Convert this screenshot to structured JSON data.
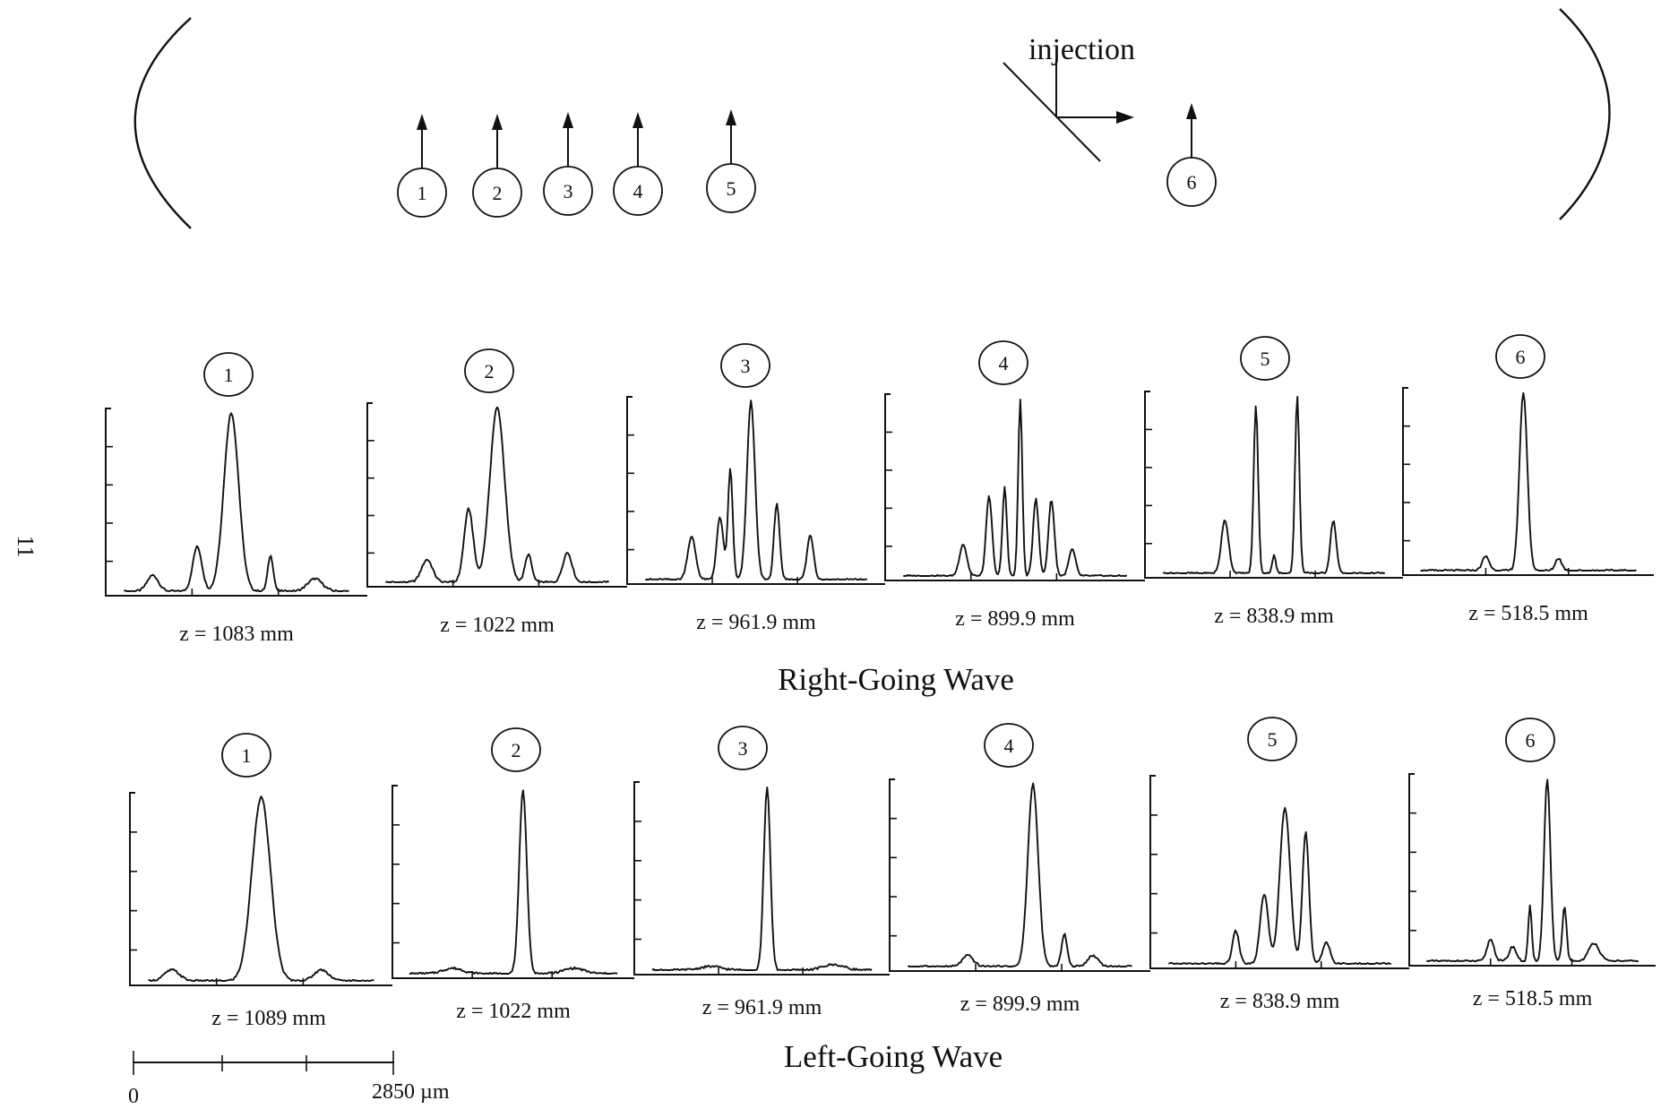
{
  "page_number": "11",
  "cavity": {
    "injection_label": "injection",
    "probe_markers": [
      "1",
      "2",
      "3",
      "4",
      "5",
      "6"
    ]
  },
  "right_going": {
    "title": "Right-Going Wave",
    "panels": [
      {
        "marker": "1",
        "label": "z = 1083 mm"
      },
      {
        "marker": "2",
        "label": "z = 1022 mm"
      },
      {
        "marker": "3",
        "label": "z = 961.9 mm"
      },
      {
        "marker": "4",
        "label": "z = 899.9 mm"
      },
      {
        "marker": "5",
        "label": "z = 838.9 mm"
      },
      {
        "marker": "6",
        "label": "z = 518.5 mm"
      }
    ]
  },
  "left_going": {
    "title": "Left-Going Wave",
    "panels": [
      {
        "marker": "1",
        "label": "z = 1089 mm"
      },
      {
        "marker": "2",
        "label": "z = 1022 mm"
      },
      {
        "marker": "3",
        "label": "z = 961.9 mm"
      },
      {
        "marker": "4",
        "label": "z = 899.9 mm"
      },
      {
        "marker": "5",
        "label": "z = 838.9 mm"
      },
      {
        "marker": "6",
        "label": "z = 518.5 mm"
      }
    ]
  },
  "scale_bar": {
    "start_label": "0",
    "end_label": "2850 µm",
    "value_um": 2850
  },
  "chart_data": [
    {
      "type": "line",
      "name": "Right-Going Wave, z = 1083 mm",
      "x_range": [
        0,
        1
      ],
      "y_range": [
        0,
        1
      ],
      "peaks": [
        {
          "x": 0.18,
          "y": 0.09,
          "w": 0.03
        },
        {
          "x": 0.35,
          "y": 0.25,
          "w": 0.025
        },
        {
          "x": 0.48,
          "y": 1.0,
          "w": 0.04
        },
        {
          "x": 0.63,
          "y": 0.2,
          "w": 0.015
        },
        {
          "x": 0.8,
          "y": 0.07,
          "w": 0.04
        }
      ]
    },
    {
      "type": "line",
      "name": "Right-Going Wave, z = 1022 mm",
      "x_range": [
        0,
        1
      ],
      "y_range": [
        0,
        1
      ],
      "peaks": [
        {
          "x": 0.23,
          "y": 0.13,
          "w": 0.03
        },
        {
          "x": 0.39,
          "y": 0.42,
          "w": 0.025
        },
        {
          "x": 0.5,
          "y": 1.0,
          "w": 0.04
        },
        {
          "x": 0.62,
          "y": 0.16,
          "w": 0.018
        },
        {
          "x": 0.77,
          "y": 0.17,
          "w": 0.025
        }
      ]
    },
    {
      "type": "line",
      "name": "Right-Going Wave, z = 961.9 mm",
      "x_range": [
        0,
        1
      ],
      "y_range": [
        0,
        1
      ],
      "peaks": [
        {
          "x": 0.25,
          "y": 0.24,
          "w": 0.022
        },
        {
          "x": 0.36,
          "y": 0.35,
          "w": 0.018
        },
        {
          "x": 0.4,
          "y": 0.62,
          "w": 0.013
        },
        {
          "x": 0.48,
          "y": 1.0,
          "w": 0.022
        },
        {
          "x": 0.58,
          "y": 0.43,
          "w": 0.015
        },
        {
          "x": 0.71,
          "y": 0.25,
          "w": 0.018
        }
      ]
    },
    {
      "type": "line",
      "name": "Right-Going Wave, z = 899.9 mm",
      "x_range": [
        0,
        1
      ],
      "y_range": [
        0,
        1
      ],
      "peaks": [
        {
          "x": 0.3,
          "y": 0.18,
          "w": 0.02
        },
        {
          "x": 0.4,
          "y": 0.45,
          "w": 0.016
        },
        {
          "x": 0.46,
          "y": 0.5,
          "w": 0.012
        },
        {
          "x": 0.52,
          "y": 1.0,
          "w": 0.011
        },
        {
          "x": 0.58,
          "y": 0.44,
          "w": 0.015
        },
        {
          "x": 0.64,
          "y": 0.43,
          "w": 0.016
        },
        {
          "x": 0.72,
          "y": 0.15,
          "w": 0.018
        }
      ]
    },
    {
      "type": "line",
      "name": "Right-Going Wave, z = 838.9 mm",
      "x_range": [
        0,
        1
      ],
      "y_range": [
        0,
        1
      ],
      "peaks": [
        {
          "x": 0.31,
          "y": 0.3,
          "w": 0.02
        },
        {
          "x": 0.43,
          "y": 0.95,
          "w": 0.012
        },
        {
          "x": 0.5,
          "y": 0.1,
          "w": 0.01
        },
        {
          "x": 0.59,
          "y": 1.0,
          "w": 0.012
        },
        {
          "x": 0.73,
          "y": 0.3,
          "w": 0.016
        }
      ]
    },
    {
      "type": "line",
      "name": "Right-Going Wave, z = 518.5 mm",
      "x_range": [
        0,
        1
      ],
      "y_range": [
        0,
        1
      ],
      "peaks": [
        {
          "x": 0.33,
          "y": 0.08,
          "w": 0.02
        },
        {
          "x": 0.48,
          "y": 1.0,
          "w": 0.022
        },
        {
          "x": 0.62,
          "y": 0.07,
          "w": 0.018
        }
      ]
    },
    {
      "type": "line",
      "name": "Left-Going Wave, z = 1089 mm",
      "x_range": [
        0,
        1
      ],
      "y_range": [
        0,
        1
      ],
      "peaks": [
        {
          "x": 0.16,
          "y": 0.06,
          "w": 0.04
        },
        {
          "x": 0.5,
          "y": 1.0,
          "w": 0.05
        },
        {
          "x": 0.73,
          "y": 0.06,
          "w": 0.04
        }
      ]
    },
    {
      "type": "line",
      "name": "Left-Going Wave, z = 1022 mm",
      "x_range": [
        0,
        1
      ],
      "y_range": [
        0,
        1
      ],
      "peaks": [
        {
          "x": 0.25,
          "y": 0.03,
          "w": 0.06
        },
        {
          "x": 0.54,
          "y": 1.0,
          "w": 0.022
        },
        {
          "x": 0.75,
          "y": 0.03,
          "w": 0.06
        }
      ]
    },
    {
      "type": "line",
      "name": "Left-Going Wave, z = 961.9 mm",
      "x_range": [
        0,
        1
      ],
      "y_range": [
        0,
        1
      ],
      "peaks": [
        {
          "x": 0.3,
          "y": 0.02,
          "w": 0.06
        },
        {
          "x": 0.52,
          "y": 1.0,
          "w": 0.018
        },
        {
          "x": 0.78,
          "y": 0.03,
          "w": 0.06
        }
      ]
    },
    {
      "type": "line",
      "name": "Left-Going Wave, z = 899.9 mm",
      "x_range": [
        0,
        1
      ],
      "y_range": [
        0,
        1
      ],
      "peaks": [
        {
          "x": 0.3,
          "y": 0.06,
          "w": 0.03
        },
        {
          "x": 0.55,
          "y": 1.0,
          "w": 0.028
        },
        {
          "x": 0.67,
          "y": 0.18,
          "w": 0.015
        },
        {
          "x": 0.78,
          "y": 0.06,
          "w": 0.03
        }
      ]
    },
    {
      "type": "line",
      "name": "Left-Going Wave, z = 838.9 mm",
      "x_range": [
        0,
        1
      ],
      "y_range": [
        0,
        1
      ],
      "peaks": [
        {
          "x": 0.33,
          "y": 0.18,
          "w": 0.018
        },
        {
          "x": 0.44,
          "y": 0.38,
          "w": 0.022
        },
        {
          "x": 0.52,
          "y": 0.85,
          "w": 0.028
        },
        {
          "x": 0.6,
          "y": 0.72,
          "w": 0.018
        },
        {
          "x": 0.68,
          "y": 0.12,
          "w": 0.02
        }
      ]
    },
    {
      "type": "line",
      "name": "Left-Going Wave, z = 518.5 mm",
      "x_range": [
        0,
        1
      ],
      "y_range": [
        0,
        1
      ],
      "peaks": [
        {
          "x": 0.33,
          "y": 0.12,
          "w": 0.02
        },
        {
          "x": 0.42,
          "y": 0.08,
          "w": 0.02
        },
        {
          "x": 0.49,
          "y": 0.3,
          "w": 0.01
        },
        {
          "x": 0.56,
          "y": 1.0,
          "w": 0.018
        },
        {
          "x": 0.63,
          "y": 0.3,
          "w": 0.012
        },
        {
          "x": 0.75,
          "y": 0.1,
          "w": 0.03
        }
      ]
    }
  ]
}
